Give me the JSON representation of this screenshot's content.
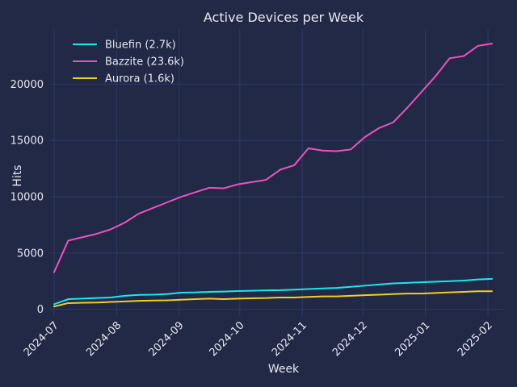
{
  "chart_data": {
    "type": "line",
    "title": "Active Devices per Week",
    "xlabel": "Week",
    "ylabel": "Hits",
    "xlim": [
      "2024-06-29",
      "2025-02-09"
    ],
    "ylim": [
      -600,
      24900
    ],
    "grid": true,
    "legend_position": "top-left",
    "x_ticks": [
      "2024-07",
      "2024-08",
      "2024-09",
      "2024-10",
      "2024-11",
      "2024-12",
      "2025-01",
      "2025-02"
    ],
    "x_tick_dates": [
      "2024-07-01",
      "2024-08-01",
      "2024-09-01",
      "2024-10-01",
      "2024-11-01",
      "2024-12-01",
      "2025-01-01",
      "2025-02-01"
    ],
    "y_ticks": [
      0,
      5000,
      10000,
      15000,
      20000
    ],
    "x": [
      "2024-07-01",
      "2024-07-08",
      "2024-07-15",
      "2024-07-22",
      "2024-07-29",
      "2024-08-05",
      "2024-08-12",
      "2024-08-19",
      "2024-08-26",
      "2024-09-02",
      "2024-09-09",
      "2024-09-16",
      "2024-09-23",
      "2024-09-30",
      "2024-10-07",
      "2024-10-14",
      "2024-10-21",
      "2024-10-28",
      "2024-11-04",
      "2024-11-11",
      "2024-11-18",
      "2024-11-25",
      "2024-12-02",
      "2024-12-09",
      "2024-12-16",
      "2024-12-23",
      "2024-12-30",
      "2025-01-06",
      "2025-01-13",
      "2025-01-20",
      "2025-01-27",
      "2025-02-03"
    ],
    "series": [
      {
        "name": "Bluefin (2.7k)",
        "color": "#18e8f0",
        "values": [
          450,
          900,
          950,
          1000,
          1050,
          1200,
          1280,
          1300,
          1350,
          1480,
          1500,
          1550,
          1580,
          1620,
          1650,
          1680,
          1700,
          1750,
          1800,
          1850,
          1900,
          2000,
          2100,
          2200,
          2300,
          2350,
          2400,
          2450,
          2500,
          2550,
          2650,
          2700
        ]
      },
      {
        "name": "Bazzite (23.6k)",
        "color": "#f050c0",
        "values": [
          3300,
          6100,
          6400,
          6700,
          7100,
          7700,
          8500,
          9000,
          9500,
          10000,
          10400,
          10800,
          10750,
          11100,
          11300,
          11500,
          12400,
          12800,
          14300,
          14100,
          14050,
          14200,
          15300,
          16100,
          16600,
          17900,
          19300,
          20700,
          22300,
          22500,
          23400,
          23600
        ]
      },
      {
        "name": "Aurora (1.6k)",
        "color": "#f0d020",
        "values": [
          250,
          550,
          580,
          600,
          650,
          700,
          750,
          780,
          800,
          850,
          900,
          950,
          900,
          950,
          980,
          1000,
          1050,
          1050,
          1100,
          1150,
          1150,
          1200,
          1250,
          1300,
          1350,
          1400,
          1400,
          1450,
          1500,
          1550,
          1600,
          1600
        ]
      }
    ]
  }
}
